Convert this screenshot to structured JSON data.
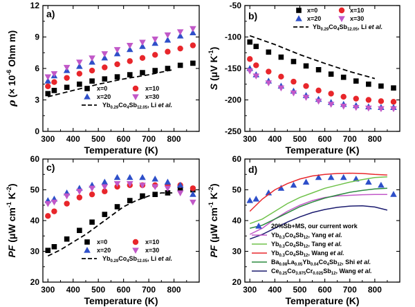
{
  "chart_data": [
    {
      "id": "a",
      "type": "scatter",
      "panel_label": "a)",
      "xlabel": "Temperature (K)",
      "ylabel": "ρ (× 10⁻⁶ Ohm m)",
      "xlim": [
        280,
        900
      ],
      "ylim": [
        0,
        12
      ],
      "xticks": [
        300,
        400,
        500,
        600,
        700,
        800
      ],
      "yticks": [
        0,
        3,
        6,
        9,
        12
      ],
      "legend_position": "bottom-right",
      "series": [
        {
          "name": "x=0",
          "marker": "square",
          "color": "#000000",
          "x": [
            300,
            325,
            375,
            425,
            475,
            525,
            575,
            625,
            675,
            725,
            775,
            825,
            875
          ],
          "y": [
            3.6,
            3.9,
            4.2,
            4.5,
            4.8,
            5.0,
            5.2,
            5.4,
            5.6,
            5.8,
            6.0,
            6.3,
            6.5
          ]
        },
        {
          "name": "x=10",
          "marker": "circle",
          "color": "#e8262b",
          "x": [
            300,
            325,
            375,
            425,
            475,
            525,
            575,
            625,
            675,
            725,
            775,
            825,
            875
          ],
          "y": [
            4.3,
            4.7,
            5.1,
            5.5,
            5.8,
            6.1,
            6.4,
            6.7,
            7.0,
            7.3,
            7.6,
            7.9,
            8.2
          ]
        },
        {
          "name": "x=20",
          "marker": "triangle-up",
          "color": "#2e4fc9",
          "x": [
            300,
            325,
            375,
            425,
            475,
            525,
            575,
            625,
            675,
            725,
            775,
            825,
            875
          ],
          "y": [
            4.8,
            5.3,
            5.8,
            6.2,
            6.6,
            7.0,
            7.4,
            7.8,
            8.1,
            8.4,
            8.7,
            9.1,
            9.4
          ]
        },
        {
          "name": "x=30",
          "marker": "triangle-down",
          "color": "#c158c8",
          "x": [
            300,
            325,
            375,
            425,
            475,
            525,
            575,
            625,
            675,
            725,
            775,
            825,
            875
          ],
          "y": [
            5.2,
            5.5,
            6.1,
            6.6,
            7.0,
            7.4,
            7.8,
            8.2,
            8.5,
            8.8,
            9.2,
            9.5,
            9.8
          ]
        },
        {
          "name": "Yb0.29Co4Sb12.05, Li et al.",
          "legend_main": "Yb",
          "legend_subs": [
            "0.29",
            "4",
            "12.05"
          ],
          "legend_parts": [
            "Co",
            "Sb",
            ", Li "
          ],
          "legend_italic": "et al.",
          "line": "dashed",
          "color": "#000000",
          "x": [
            300,
            400,
            500,
            600,
            700,
            800
          ],
          "y": [
            3.3,
            3.9,
            4.5,
            5.0,
            5.4,
            5.9
          ]
        }
      ]
    },
    {
      "id": "b",
      "type": "scatter",
      "panel_label": "b)",
      "xlabel": "Temperature (K)",
      "ylabel": "S (μV K⁻¹)",
      "xlim": [
        280,
        900
      ],
      "ylim": [
        -250,
        -50
      ],
      "xticks": [
        300,
        400,
        500,
        600,
        700,
        800
      ],
      "yticks": [
        -250,
        -200,
        -150,
        -100,
        -50
      ],
      "legend_position": "top-right",
      "series": [
        {
          "name": "x=0",
          "marker": "square",
          "color": "#000000",
          "x": [
            300,
            325,
            375,
            425,
            475,
            525,
            575,
            625,
            675,
            725,
            775,
            825,
            875
          ],
          "y": [
            -108,
            -115,
            -124,
            -132,
            -139,
            -146,
            -152,
            -159,
            -164,
            -170,
            -175,
            -178,
            -181
          ]
        },
        {
          "name": "x=10",
          "marker": "circle",
          "color": "#e8262b",
          "x": [
            300,
            325,
            375,
            425,
            475,
            525,
            575,
            625,
            675,
            725,
            775,
            825,
            875
          ],
          "y": [
            -135,
            -145,
            -155,
            -163,
            -171,
            -178,
            -185,
            -190,
            -195,
            -198,
            -200,
            -202,
            -203
          ]
        },
        {
          "name": "x=20",
          "marker": "triangle-up",
          "color": "#2e4fc9",
          "x": [
            300,
            325,
            375,
            425,
            475,
            525,
            575,
            625,
            675,
            725,
            775,
            825,
            875
          ],
          "y": [
            -150,
            -160,
            -170,
            -178,
            -186,
            -193,
            -199,
            -204,
            -207,
            -209,
            -211,
            -212,
            -212
          ]
        },
        {
          "name": "x=30",
          "marker": "triangle-down",
          "color": "#c158c8",
          "x": [
            300,
            325,
            375,
            425,
            475,
            525,
            575,
            625,
            675,
            725,
            775,
            825,
            875
          ],
          "y": [
            -154,
            -162,
            -173,
            -181,
            -189,
            -196,
            -202,
            -207,
            -210,
            -212,
            -213,
            -214,
            -214
          ]
        },
        {
          "name": "Yb0.29Co4Sb12.05, Li et al.",
          "legend_main": "Yb",
          "legend_subs": [
            "0.29",
            "4",
            "12.05"
          ],
          "legend_parts": [
            "Co",
            "Sb",
            ", Li "
          ],
          "legend_italic": "et al.",
          "line": "dashed",
          "color": "#000000",
          "x": [
            300,
            400,
            500,
            600,
            700,
            800
          ],
          "y": [
            -98,
            -112,
            -128,
            -142,
            -155,
            -166
          ]
        }
      ]
    },
    {
      "id": "c",
      "type": "scatter",
      "panel_label": "c)",
      "xlabel": "Temperature (K)",
      "ylabel": "PF (μW cm⁻¹ K⁻²)",
      "xlim": [
        280,
        900
      ],
      "ylim": [
        20,
        60
      ],
      "xticks": [
        300,
        400,
        500,
        600,
        700,
        800
      ],
      "yticks": [
        20,
        30,
        40,
        50,
        60
      ],
      "legend_position": "bottom-right",
      "series": [
        {
          "name": "x=0",
          "marker": "square",
          "color": "#000000",
          "x": [
            300,
            325,
            375,
            425,
            475,
            525,
            575,
            625,
            675,
            725,
            775,
            825,
            875
          ],
          "y": [
            30.3,
            31.5,
            34,
            36.8,
            39.5,
            42,
            44.5,
            46.5,
            48,
            48.5,
            49,
            50.5,
            50
          ]
        },
        {
          "name": "x=10",
          "marker": "circle",
          "color": "#e8262b",
          "x": [
            300,
            325,
            375,
            425,
            475,
            525,
            575,
            625,
            675,
            725,
            775,
            825,
            875
          ],
          "y": [
            41.5,
            43,
            45.5,
            47.5,
            48.5,
            49.5,
            51,
            51.5,
            51.5,
            51.5,
            51.5,
            51.5,
            50.5
          ]
        },
        {
          "name": "x=20",
          "marker": "triangle-up",
          "color": "#2e4fc9",
          "x": [
            300,
            325,
            375,
            425,
            475,
            525,
            575,
            625,
            675,
            725,
            775,
            825,
            875
          ],
          "y": [
            46.5,
            47,
            49,
            50.5,
            51.5,
            52.5,
            54,
            54,
            54,
            53.5,
            52.5,
            51.5,
            48.5
          ]
        },
        {
          "name": "x=30",
          "marker": "triangle-down",
          "color": "#c158c8",
          "x": [
            300,
            325,
            375,
            425,
            475,
            525,
            575,
            625,
            675,
            725,
            775,
            825,
            875
          ],
          "y": [
            45.5,
            46,
            48,
            49.5,
            50.5,
            51,
            52,
            52,
            51.5,
            51,
            50.5,
            49,
            46
          ]
        },
        {
          "name": "Yb0.29Co4Sb12.05, Li et al.",
          "legend_main": "Yb",
          "legend_subs": [
            "0.29",
            "4",
            "12.05"
          ],
          "legend_parts": [
            "Co",
            "Sb",
            ", Li "
          ],
          "legend_italic": "et al.",
          "line": "dashed",
          "color": "#000000",
          "x": [
            300,
            350,
            400,
            450,
            500,
            550,
            600,
            650,
            700,
            750,
            800
          ],
          "y": [
            28.5,
            30.5,
            33,
            35.5,
            38.5,
            41.5,
            44.5,
            46.5,
            48,
            49,
            49
          ]
        }
      ]
    },
    {
      "id": "d",
      "type": "line",
      "panel_label": "d)",
      "xlabel": "Temperature (K)",
      "ylabel": "PF (μW cm⁻¹ K⁻²)",
      "xlim": [
        280,
        900
      ],
      "ylim": [
        20,
        60
      ],
      "xticks": [
        300,
        400,
        500,
        600,
        700,
        800
      ],
      "yticks": [
        20,
        30,
        40,
        50,
        60
      ],
      "legend_position": "bottom-right",
      "series": [
        {
          "name": "20%Sb+MS, our current work",
          "marker": "triangle-up",
          "color": "#2e4fc9",
          "x": [
            300,
            325,
            375,
            425,
            475,
            525,
            575,
            625,
            675,
            725,
            775,
            825,
            875
          ],
          "y": [
            46.5,
            47,
            49,
            50.5,
            51.5,
            52.5,
            54,
            54,
            54,
            53.5,
            52.5,
            51.5,
            48.5
          ]
        },
        {
          "name": "Yb0.3Co4Sb12, Yang et al.",
          "legend_html": [
            "Yb",
            "0.3",
            "Co",
            "4",
            "Sb",
            "12",
            ", Yang "
          ],
          "legend_italic": "et al.",
          "line": "solid",
          "color": "#c158c8",
          "x": [
            300,
            350,
            400,
            450,
            500,
            550,
            600,
            650,
            700,
            750,
            800,
            850
          ],
          "y": [
            35.5,
            37.5,
            40.5,
            43,
            45,
            46.5,
            47.5,
            48,
            48.2,
            48.4,
            48.5,
            48.5
          ]
        },
        {
          "name": "Yb0.3Co4Sb12, Tang et al.",
          "legend_html": [
            "Yb",
            "0.3",
            "Co",
            "4",
            "Sb",
            "12",
            ", Tang "
          ],
          "legend_italic": "et al.",
          "line": "solid",
          "color": "#6fc24a",
          "x": [
            300,
            350,
            400,
            450,
            500,
            550,
            600,
            650,
            700,
            750,
            800,
            850
          ],
          "y": [
            39,
            40.5,
            43,
            45.5,
            47.5,
            49,
            50.5,
            51.5,
            52.5,
            53.3,
            54,
            54.2
          ]
        },
        {
          "name": "Yb0.3Co4Sb12, Wang et al.",
          "legend_html": [
            "Yb",
            "0.3",
            "Co",
            "4",
            "Sb",
            "12",
            ", Wang "
          ],
          "legend_italic": "et al.",
          "line": "solid",
          "color": "#e8262b",
          "x": [
            300,
            350,
            400,
            450,
            500,
            550,
            600,
            650,
            700,
            750,
            800,
            850
          ],
          "y": [
            43,
            47,
            50,
            52,
            53.5,
            54.5,
            55,
            55.3,
            55.4,
            55.3,
            55,
            54.8
          ]
        },
        {
          "name": "Ba0.08La0.05Yb0.04Co4Sb12, Shi et al.",
          "legend_html": [
            "Ba",
            "0.08",
            "La",
            "0.05",
            "Yb",
            "0.04",
            "Co",
            "4",
            "Sb",
            "12",
            ", Shi "
          ],
          "legend_italic": "et al.",
          "line": "solid",
          "color": "#2a8a3e",
          "x": [
            300,
            350,
            400,
            450,
            500,
            550,
            600,
            650,
            700,
            750,
            800,
            850
          ],
          "y": [
            37.5,
            38.5,
            40.5,
            42.5,
            44.5,
            46,
            47.3,
            48.3,
            49.2,
            49.8,
            50.3,
            50.5
          ]
        },
        {
          "name": "Ce0.25Co3.975Cr0.025Sb12, Wang et al.",
          "legend_html": [
            "Ce",
            "0.25",
            "Co",
            "3.975",
            "Cr",
            "0.025",
            "Sb",
            "12",
            ", Wang "
          ],
          "legend_italic": "et al.",
          "line": "solid",
          "color": "#1a1a6e",
          "x": [
            300,
            350,
            400,
            450,
            500,
            550,
            600,
            650,
            700,
            750,
            800,
            850
          ],
          "y": [
            34,
            35.5,
            37.5,
            39.5,
            41.2,
            42.6,
            43.6,
            44.3,
            44.7,
            44.8,
            44.4,
            43.4
          ]
        }
      ]
    }
  ]
}
